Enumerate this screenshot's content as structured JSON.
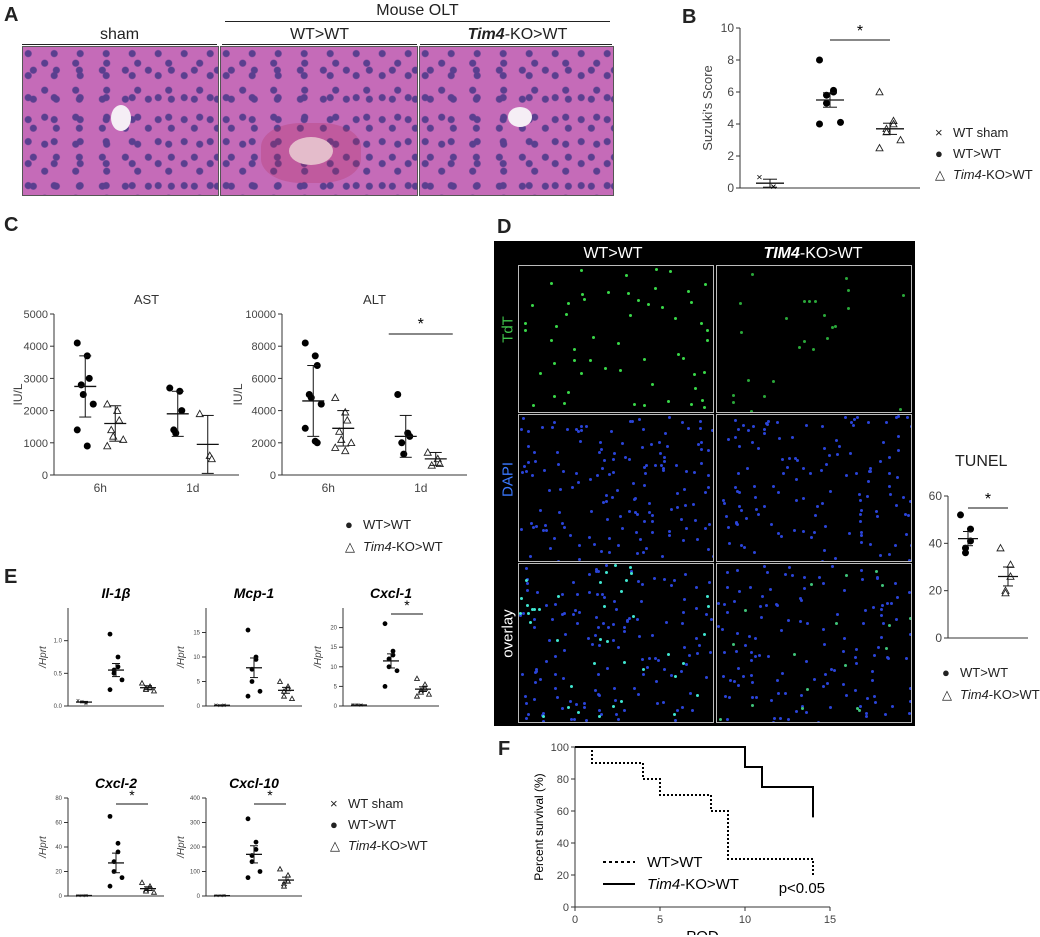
{
  "panel_letters": {
    "a": "A",
    "b": "B",
    "c": "C",
    "d": "D",
    "e": "E",
    "f": "F"
  },
  "panelA": {
    "group_title": "Mouse OLT",
    "labels": [
      "sham",
      "WT>WT",
      "Tim4-KO>WT"
    ]
  },
  "panelD": {
    "col1": "WT>WT",
    "col2_italic": "TIM4",
    "col2_rest": "-KO>WT",
    "row_labels": [
      "TdT",
      "DAPI",
      "overlay"
    ],
    "tunel_title": "TUNEL"
  },
  "legend_common": {
    "wt_sham": "WT sham",
    "wt_wt": "WT>WT",
    "tim4_italic": "Tim4",
    "tim4_rest": "-KO>WT"
  },
  "chart_data": [
    {
      "id": "B",
      "type": "scatter",
      "ylabel": "Suzuki's Score",
      "ylim": [
        0,
        10
      ],
      "yticks": [
        0,
        2,
        4,
        6,
        8,
        10
      ],
      "groups": [
        {
          "name": "WT sham",
          "marker": "x",
          "values": [
            0.7,
            0.1,
            0.1
          ],
          "mean": 0.3,
          "sem": 0.25
        },
        {
          "name": "WT>WT",
          "marker": "dot",
          "values": [
            8,
            6.1,
            6,
            5.8,
            5.3,
            4.1,
            4
          ],
          "mean": 5.5,
          "sem": 0.45
        },
        {
          "name": "Tim4-KO>WT",
          "marker": "tri",
          "values": [
            6,
            4.2,
            4,
            3.7,
            3.5,
            3,
            2.5
          ],
          "mean": 3.7,
          "sem": 0.35
        }
      ],
      "significance": "*"
    },
    {
      "id": "C-AST",
      "type": "scatter",
      "title": "AST",
      "ylabel": "IU/L",
      "ylim": [
        0,
        5000
      ],
      "yticks": [
        0,
        1000,
        2000,
        3000,
        4000,
        5000
      ],
      "categories": [
        "6h",
        "1d"
      ],
      "series": [
        {
          "name": "WT>WT",
          "marker": "dot",
          "values": [
            [
              4100,
              3700,
              3000,
              2800,
              2500,
              2200,
              1400,
              900
            ],
            [
              2700,
              2600,
              2000,
              1400,
              1300
            ]
          ],
          "mean": [
            2750,
            1900
          ],
          "sd": [
            950,
            700
          ]
        },
        {
          "name": "Tim4-KO>WT",
          "marker": "tri",
          "values": [
            [
              2200,
              2000,
              1700,
              1400,
              1200,
              1100,
              900
            ],
            [
              1900,
              600,
              500
            ]
          ],
          "mean": [
            1600,
            950
          ],
          "sd": [
            550,
            900
          ]
        }
      ]
    },
    {
      "id": "C-ALT",
      "type": "scatter",
      "title": "ALT",
      "ylabel": "IU/L",
      "ylim": [
        0,
        10000
      ],
      "yticks": [
        0,
        2000,
        4000,
        6000,
        8000,
        10000
      ],
      "categories": [
        "6h",
        "1d"
      ],
      "series": [
        {
          "name": "WT>WT",
          "marker": "dot",
          "values": [
            [
              8200,
              7400,
              6800,
              5000,
              4800,
              4400,
              2900,
              2100,
              2000
            ],
            [
              5000,
              2600,
              2400,
              2000,
              1300
            ]
          ],
          "mean": [
            4600,
            2400
          ],
          "sd": [
            2200,
            1300
          ]
        },
        {
          "name": "Tim4-KO>WT",
          "marker": "tri",
          "values": [
            [
              4800,
              3900,
              3400,
              2700,
              2200,
              2000,
              1700,
              1500
            ],
            [
              1400,
              1000,
              700,
              600
            ]
          ],
          "mean": [
            2900,
            1000
          ],
          "sd": [
            1100,
            400
          ]
        }
      ],
      "significance": "*"
    },
    {
      "id": "D-TUNEL",
      "type": "scatter",
      "title": "TUNEL",
      "ylim": [
        0,
        60
      ],
      "yticks": [
        0,
        20,
        40,
        60
      ],
      "groups": [
        {
          "name": "WT>WT",
          "marker": "dot",
          "values": [
            52,
            46,
            41,
            38,
            36
          ],
          "mean": 42,
          "sem": 3
        },
        {
          "name": "Tim4-KO>WT",
          "marker": "tri",
          "values": [
            38,
            31,
            26,
            20,
            19
          ],
          "mean": 26,
          "sem": 4
        }
      ],
      "significance": "*"
    },
    {
      "id": "E-Il-1b",
      "type": "scatter",
      "title": "Il-1β",
      "ylabel": "/Hprt",
      "ylim": [
        0,
        1.5
      ],
      "yticks": [
        "0.0",
        "0.5",
        "1.0"
      ],
      "ytickvals": [
        0,
        0.5,
        1.0
      ],
      "groups": [
        {
          "name": "WT sham",
          "marker": "x",
          "values": [
            0.08,
            0.05,
            0.04,
            0.07
          ],
          "mean": 0.06,
          "sem": 0.01
        },
        {
          "name": "WT>WT",
          "marker": "dot",
          "values": [
            1.1,
            0.75,
            0.6,
            0.55,
            0.5,
            0.4,
            0.25
          ],
          "mean": 0.55,
          "sem": 0.1
        },
        {
          "name": "Tim4-KO>WT",
          "marker": "tri",
          "values": [
            0.35,
            0.3,
            0.28,
            0.27,
            0.25,
            0.23
          ],
          "mean": 0.28,
          "sem": 0.03
        }
      ]
    },
    {
      "id": "E-Mcp-1",
      "type": "scatter",
      "title": "Mcp-1",
      "ylabel": "/Hprt",
      "ylim": [
        0,
        20
      ],
      "yticks": [
        "0",
        "5",
        "10",
        "15"
      ],
      "ytickvals": [
        0,
        5,
        10,
        15
      ],
      "groups": [
        {
          "name": "WT sham",
          "marker": "x",
          "values": [
            0.2,
            0.1,
            0.2,
            0.1
          ],
          "mean": 0.15,
          "sem": 0.03
        },
        {
          "name": "WT>WT",
          "marker": "dot",
          "values": [
            15.5,
            10,
            9.5,
            7.5,
            5,
            3,
            2
          ],
          "mean": 7.8,
          "sem": 2
        },
        {
          "name": "Tim4-KO>WT",
          "marker": "tri",
          "values": [
            5,
            4,
            3.5,
            3,
            2,
            1.5
          ],
          "mean": 3.2,
          "sem": 0.6
        }
      ]
    },
    {
      "id": "E-Cxcl-1",
      "type": "scatter",
      "title": "Cxcl-1",
      "ylabel": "/Hprt",
      "ylim": [
        0,
        25
      ],
      "yticks": [
        "0",
        "5",
        "10",
        "15",
        "20"
      ],
      "ytickvals": [
        0,
        5,
        10,
        15,
        20
      ],
      "groups": [
        {
          "name": "WT sham",
          "marker": "x",
          "values": [
            0.3,
            0.2,
            0.2,
            0.3
          ],
          "mean": 0.25,
          "sem": 0.03
        },
        {
          "name": "WT>WT",
          "marker": "dot",
          "values": [
            21,
            14,
            13,
            12,
            10,
            9,
            5
          ],
          "mean": 11.5,
          "sem": 1.8
        },
        {
          "name": "Tim4-KO>WT",
          "marker": "tri",
          "values": [
            7,
            5.5,
            4.5,
            4,
            3.5,
            3,
            2.5
          ],
          "mean": 4.3,
          "sem": 0.6
        }
      ],
      "significance": "*"
    },
    {
      "id": "E-Cxcl-2",
      "type": "scatter",
      "title": "Cxcl-2",
      "ylabel": "/Hprt",
      "ylim": [
        0,
        80
      ],
      "yticks": [
        "0",
        "20",
        "40",
        "60",
        "80"
      ],
      "ytickvals": [
        0,
        20,
        40,
        60,
        80
      ],
      "groups": [
        {
          "name": "WT sham",
          "marker": "x",
          "values": [
            0.5,
            0.3,
            0.4,
            0.3
          ],
          "mean": 0.4,
          "sem": 0.05
        },
        {
          "name": "WT>WT",
          "marker": "dot",
          "values": [
            65,
            43,
            36,
            28,
            20,
            15,
            8
          ],
          "mean": 27,
          "sem": 8
        },
        {
          "name": "Tim4-KO>WT",
          "marker": "tri",
          "values": [
            11,
            8,
            6,
            5,
            4,
            3
          ],
          "mean": 6,
          "sem": 1.5
        }
      ],
      "significance": "*"
    },
    {
      "id": "E-Cxcl-10",
      "type": "scatter",
      "title": "Cxcl-10",
      "ylabel": "/Hprt",
      "ylim": [
        0,
        400
      ],
      "yticks": [
        "0",
        "100",
        "200",
        "300",
        "400"
      ],
      "ytickvals": [
        0,
        100,
        200,
        300,
        400
      ],
      "groups": [
        {
          "name": "WT sham",
          "marker": "x",
          "values": [
            2,
            1,
            2,
            1
          ],
          "mean": 1.5,
          "sem": 0.3
        },
        {
          "name": "WT>WT",
          "marker": "dot",
          "values": [
            315,
            220,
            190,
            165,
            140,
            100,
            75
          ],
          "mean": 170,
          "sem": 35
        },
        {
          "name": "Tim4-KO>WT",
          "marker": "tri",
          "values": [
            110,
            85,
            60,
            50,
            40
          ],
          "mean": 65,
          "sem": 12
        }
      ],
      "significance": "*"
    },
    {
      "id": "F",
      "type": "line",
      "xlabel": "POD",
      "ylabel": "Percent survival (%)",
      "xlim": [
        0,
        15
      ],
      "xticks": [
        0,
        5,
        10,
        15
      ],
      "ylim": [
        0,
        100
      ],
      "yticks": [
        0,
        20,
        40,
        60,
        80,
        100
      ],
      "series": [
        {
          "name": "WT>WT",
          "style": "dotted",
          "x": [
            0,
            1,
            1,
            4,
            4,
            5,
            5,
            8,
            8,
            9,
            9,
            14,
            14
          ],
          "y": [
            100,
            100,
            90,
            90,
            80,
            80,
            70,
            70,
            60,
            60,
            30,
            30,
            20
          ]
        },
        {
          "name": "Tim4-KO>WT",
          "style": "solid",
          "x": [
            0,
            10,
            10,
            11,
            11,
            14,
            14
          ],
          "y": [
            100,
            100,
            87.5,
            87.5,
            75,
            75,
            56
          ]
        }
      ],
      "annotation": "p<0.05"
    }
  ]
}
